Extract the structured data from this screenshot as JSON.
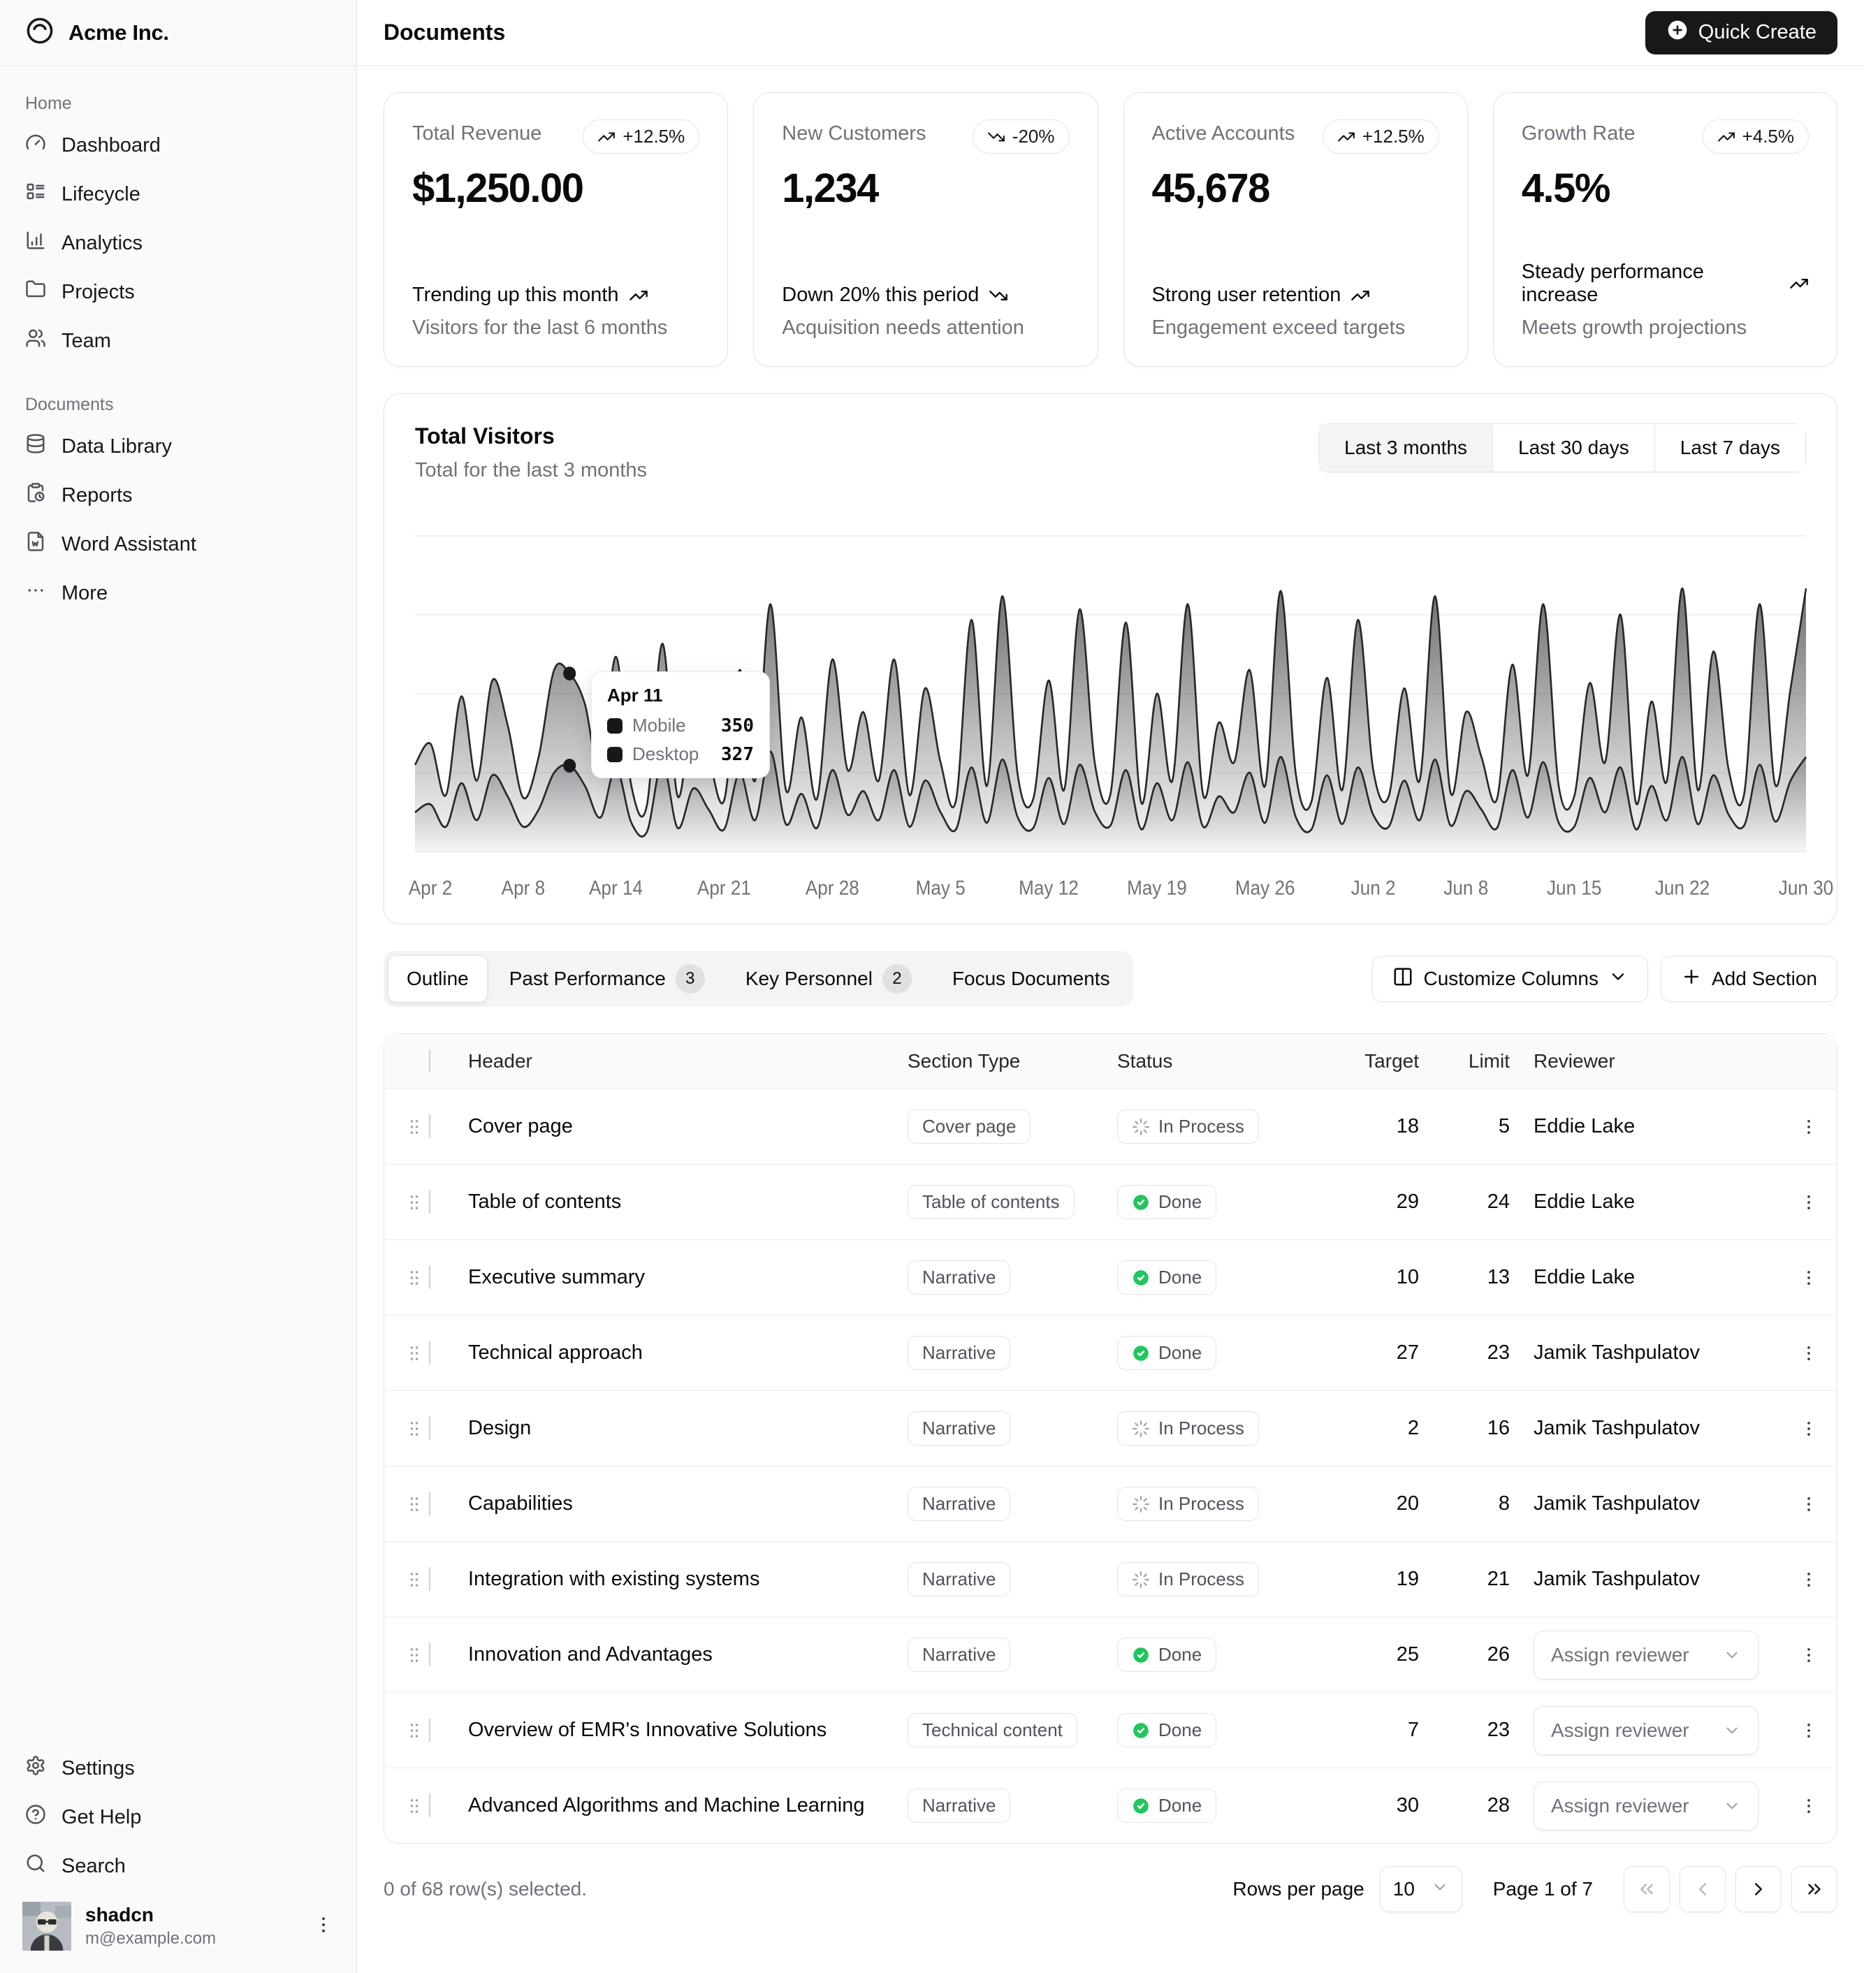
{
  "brand": {
    "name": "Acme Inc."
  },
  "sidebar": {
    "sections": [
      {
        "label": "Home",
        "items": [
          {
            "icon": "gauge",
            "label": "Dashboard"
          },
          {
            "icon": "layout-list",
            "label": "Lifecycle"
          },
          {
            "icon": "chart-column",
            "label": "Analytics"
          },
          {
            "icon": "folder",
            "label": "Projects"
          },
          {
            "icon": "users",
            "label": "Team"
          }
        ]
      },
      {
        "label": "Documents",
        "items": [
          {
            "icon": "database",
            "label": "Data Library"
          },
          {
            "icon": "clipboard-clock",
            "label": "Reports"
          },
          {
            "icon": "file-word",
            "label": "Word Assistant"
          },
          {
            "icon": "ellipsis",
            "label": "More"
          }
        ]
      }
    ],
    "footer_items": [
      {
        "icon": "settings",
        "label": "Settings"
      },
      {
        "icon": "help-circle",
        "label": "Get Help"
      },
      {
        "icon": "search",
        "label": "Search"
      }
    ],
    "user": {
      "name": "shadcn",
      "email": "m@example.com"
    }
  },
  "header": {
    "title": "Documents",
    "quick_create_label": "Quick Create"
  },
  "stat_cards": [
    {
      "label": "Total Revenue",
      "badge": "+12.5%",
      "trend": "up",
      "value": "$1,250.00",
      "footer_title": "Trending up this month",
      "footer_desc": "Visitors for the last 6 months"
    },
    {
      "label": "New Customers",
      "badge": "-20%",
      "trend": "down",
      "value": "1,234",
      "footer_title": "Down 20% this period",
      "footer_desc": "Acquisition needs attention"
    },
    {
      "label": "Active Accounts",
      "badge": "+12.5%",
      "trend": "up",
      "value": "45,678",
      "footer_title": "Strong user retention",
      "footer_desc": "Engagement exceed targets"
    },
    {
      "label": "Growth Rate",
      "badge": "+4.5%",
      "trend": "up",
      "value": "4.5%",
      "footer_title": "Steady performance increase",
      "footer_desc": "Meets growth projections"
    }
  ],
  "chart": {
    "title": "Total Visitors",
    "subtitle": "Total for the last 3 months",
    "ranges": [
      {
        "label": "Last 3 months",
        "active": true
      },
      {
        "label": "Last 30 days",
        "active": false
      },
      {
        "label": "Last 7 days",
        "active": false
      }
    ],
    "tooltip": {
      "date": "Apr 11",
      "rows": [
        {
          "label": "Mobile",
          "value": "350"
        },
        {
          "label": "Desktop",
          "value": "327"
        }
      ]
    }
  },
  "chart_data": {
    "type": "area",
    "stacked": true,
    "title": "Total Visitors",
    "x_range": "Apr 1 - Jun 30",
    "ylim": [
      0,
      1200
    ],
    "grid_values": [
      300,
      600,
      900,
      1200
    ],
    "legend": [
      "Mobile",
      "Desktop"
    ],
    "highlight_index": 10,
    "x_tick_labels": [
      {
        "label": "Apr 2",
        "index": 1
      },
      {
        "label": "Apr 8",
        "index": 7
      },
      {
        "label": "Apr 14",
        "index": 13
      },
      {
        "label": "Apr 21",
        "index": 20
      },
      {
        "label": "Apr 28",
        "index": 27
      },
      {
        "label": "May 5",
        "index": 34
      },
      {
        "label": "May 12",
        "index": 41
      },
      {
        "label": "May 19",
        "index": 48
      },
      {
        "label": "May 26",
        "index": 55
      },
      {
        "label": "Jun 2",
        "index": 62
      },
      {
        "label": "Jun 8",
        "index": 68
      },
      {
        "label": "Jun 15",
        "index": 75
      },
      {
        "label": "Jun 22",
        "index": 82
      },
      {
        "label": "Jun 30",
        "index": 90
      }
    ],
    "series": [
      {
        "name": "Desktop",
        "values": [
          150,
          180,
          95,
          260,
          120,
          290,
          210,
          95,
          160,
          300,
          327,
          250,
          130,
          320,
          110,
          75,
          340,
          90,
          240,
          160,
          85,
          300,
          120,
          380,
          105,
          220,
          90,
          310,
          140,
          230,
          120,
          310,
          95,
          270,
          150,
          85,
          320,
          110,
          350,
          130,
          90,
          280,
          105,
          330,
          150,
          100,
          310,
          85,
          260,
          120,
          340,
          95,
          210,
          150,
          300,
          110,
          360,
          130,
          85,
          290,
          105,
          320,
          140,
          95,
          270,
          120,
          350,
          100,
          230,
          160,
          90,
          310,
          130,
          340,
          110,
          95,
          280,
          150,
          320,
          85,
          250,
          120,
          360,
          105,
          290,
          140,
          100,
          330,
          115,
          270,
          360
        ]
      },
      {
        "name": "Mobile",
        "values": [
          180,
          230,
          120,
          330,
          150,
          360,
          270,
          110,
          200,
          390,
          350,
          310,
          160,
          420,
          140,
          100,
          450,
          120,
          310,
          200,
          110,
          390,
          150,
          560,
          130,
          290,
          110,
          420,
          170,
          300,
          150,
          420,
          120,
          350,
          190,
          110,
          560,
          140,
          620,
          160,
          110,
          370,
          130,
          590,
          180,
          120,
          560,
          100,
          340,
          150,
          600,
          120,
          280,
          190,
          390,
          140,
          630,
          160,
          105,
          370,
          130,
          560,
          170,
          115,
          350,
          150,
          620,
          125,
          300,
          200,
          110,
          400,
          160,
          600,
          140,
          115,
          360,
          190,
          580,
          100,
          320,
          150,
          640,
          130,
          470,
          170,
          120,
          610,
          140,
          350,
          640
        ]
      }
    ]
  },
  "toolbar": {
    "tabs": [
      {
        "label": "Outline",
        "active": true
      },
      {
        "label": "Past Performance",
        "badge": "3"
      },
      {
        "label": "Key Personnel",
        "badge": "2"
      },
      {
        "label": "Focus Documents"
      }
    ],
    "customize_label": "Customize Columns",
    "add_section_label": "Add Section"
  },
  "table": {
    "columns": [
      "Header",
      "Section Type",
      "Status",
      "Target",
      "Limit",
      "Reviewer"
    ],
    "assign_label": "Assign reviewer",
    "rows": [
      {
        "header": "Cover page",
        "type": "Cover page",
        "status": "In Process",
        "target": "18",
        "limit": "5",
        "reviewer": "Eddie Lake"
      },
      {
        "header": "Table of contents",
        "type": "Table of contents",
        "status": "Done",
        "target": "29",
        "limit": "24",
        "reviewer": "Eddie Lake"
      },
      {
        "header": "Executive summary",
        "type": "Narrative",
        "status": "Done",
        "target": "10",
        "limit": "13",
        "reviewer": "Eddie Lake"
      },
      {
        "header": "Technical approach",
        "type": "Narrative",
        "status": "Done",
        "target": "27",
        "limit": "23",
        "reviewer": "Jamik Tashpulatov"
      },
      {
        "header": "Design",
        "type": "Narrative",
        "status": "In Process",
        "target": "2",
        "limit": "16",
        "reviewer": "Jamik Tashpulatov"
      },
      {
        "header": "Capabilities",
        "type": "Narrative",
        "status": "In Process",
        "target": "20",
        "limit": "8",
        "reviewer": "Jamik Tashpulatov"
      },
      {
        "header": "Integration with existing systems",
        "type": "Narrative",
        "status": "In Process",
        "target": "19",
        "limit": "21",
        "reviewer": "Jamik Tashpulatov"
      },
      {
        "header": "Innovation and Advantages",
        "type": "Narrative",
        "status": "Done",
        "target": "25",
        "limit": "26",
        "reviewer": null
      },
      {
        "header": "Overview of EMR's Innovative Solutions",
        "type": "Technical content",
        "status": "Done",
        "target": "7",
        "limit": "23",
        "reviewer": null
      },
      {
        "header": "Advanced Algorithms and Machine Learning",
        "type": "Narrative",
        "status": "Done",
        "target": "30",
        "limit": "28",
        "reviewer": null
      }
    ]
  },
  "table_footer": {
    "selected_text": "0 of 68 row(s) selected.",
    "rows_per_page_label": "Rows per page",
    "rows_per_page_value": "10",
    "page_text": "Page 1 of 7"
  },
  "colors": {
    "accent": "#18181b",
    "muted": "#71717a",
    "border": "#e4e4e7",
    "success": "#22c55e",
    "sidebar_bg": "#fafafa"
  }
}
